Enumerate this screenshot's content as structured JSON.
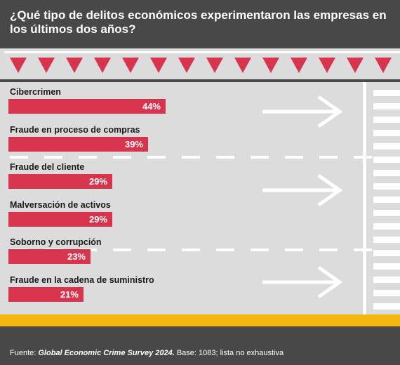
{
  "title": "¿Qué tipo de delitos económicos experimentaron las empresas en los últimos dos años?",
  "colors": {
    "background": "#484848",
    "bar": "#d9344e",
    "road": "#dcdcdc",
    "yellow": "#f2b60c",
    "triangle": "#d9344e"
  },
  "chart_data": {
    "type": "bar",
    "orientation": "horizontal",
    "categories": [
      "Cibercrimen",
      "Fraude en proceso de compras",
      "Fraude del cliente",
      "Malversación de activos",
      "Soborno y corrupción",
      "Fraude en la cadena de suministro"
    ],
    "values": [
      44,
      39,
      29,
      29,
      23,
      21
    ],
    "value_labels": [
      "44%",
      "39%",
      "29%",
      "29%",
      "23%",
      "21%"
    ],
    "unit": "%",
    "xlim": [
      0,
      100
    ],
    "grid": false,
    "legend": "none"
  },
  "source": {
    "prefix": "Fuente: ",
    "title": "Global Economic Crime Survey 2024.",
    "suffix": " Base: 1083; lista no exhaustiva"
  }
}
